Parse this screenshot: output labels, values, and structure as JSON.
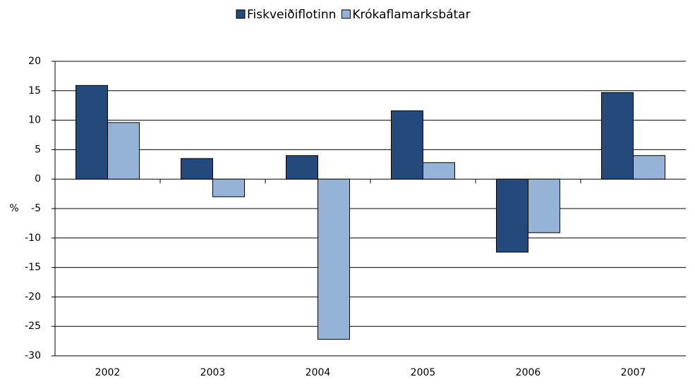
{
  "chart_data": {
    "type": "bar",
    "y_label": "%",
    "categories": [
      "2002",
      "2003",
      "2004",
      "2005",
      "2006",
      "2007"
    ],
    "series": [
      {
        "name": "Fiskveiðiflotinn",
        "color": "#244a7c",
        "values": [
          15.9,
          3.5,
          4.0,
          11.6,
          -12.4,
          14.7
        ]
      },
      {
        "name": "Krókaflamarksbátar",
        "color": "#95b3d7",
        "values": [
          9.6,
          -3.0,
          -27.2,
          2.8,
          -9.1,
          4.0
        ]
      }
    ],
    "ylim": [
      -30,
      20
    ],
    "yticks": [
      -30,
      -25,
      -20,
      -15,
      -10,
      -5,
      0,
      5,
      10,
      15,
      20
    ],
    "grid": true,
    "legend": "top"
  }
}
